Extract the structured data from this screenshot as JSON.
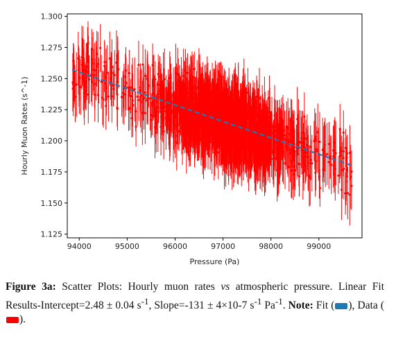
{
  "chart_data": {
    "type": "scatter",
    "xlabel": "Pressure (Pa)",
    "ylabel": "Hourly Muon Rates (s^-1)",
    "xlim": [
      93750,
      99900
    ],
    "ylim": [
      1.122,
      1.302
    ],
    "xticks": [
      94000,
      95000,
      96000,
      97000,
      98000,
      99000
    ],
    "yticks": [
      1.125,
      1.15,
      1.175,
      1.2,
      1.225,
      1.25,
      1.275,
      1.3
    ],
    "xtick_labels": [
      "94000",
      "95000",
      "96000",
      "97000",
      "98000",
      "99000"
    ],
    "ytick_labels": [
      "1.125",
      "1.150",
      "1.175",
      "1.200",
      "1.225",
      "1.250",
      "1.275",
      "1.300"
    ],
    "grid": false,
    "series": [
      {
        "role": "data",
        "marker": "point with vertical error bar",
        "color": "#ff0000",
        "x_range": [
          93850,
          99700
        ],
        "y_spread": [
          1.127,
          1.296
        ],
        "typical_error": 0.02
      },
      {
        "role": "fit",
        "color": "#1f77b4",
        "line_style": "dashed",
        "x": [
          93850,
          99700
        ],
        "y": [
          1.257,
          1.18
        ]
      }
    ]
  },
  "caption": {
    "label": "Figure 3a:",
    "text1": " Scatter Plots: Hourly muon rates ",
    "vs": "vs",
    "text2": " atmospheric pressure. Linear Fit Results-Intercept=2.48 ± 0.04 s",
    "sup1": "-1",
    "text3": ", Slope=-131 ± 4×10-7 s",
    "sup2": "-1",
    "text4": " Pa",
    "sup3": "-1",
    "text5": ". ",
    "note_label": "Note:",
    "fit_text": " Fit (",
    "mid_text": "), Data (",
    "end_text": ").",
    "fit_color": "#1f77b4",
    "data_color": "#ff0000"
  }
}
